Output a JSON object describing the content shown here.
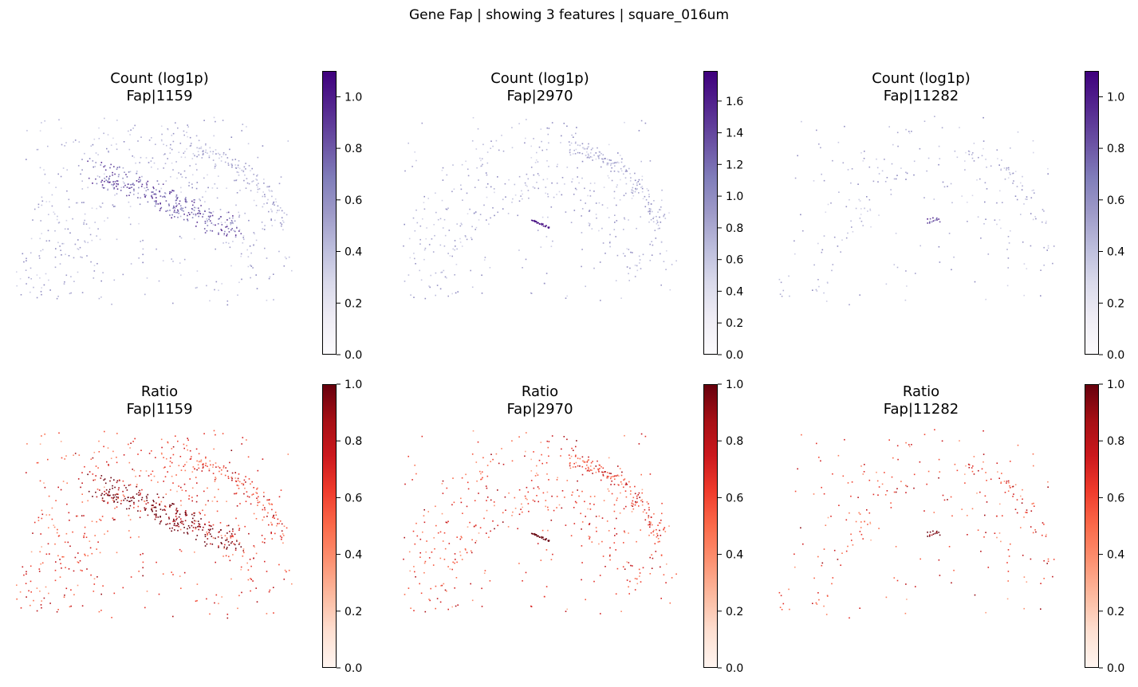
{
  "suptitle": "Gene Fap | showing 3 features | square_016um",
  "colors": {
    "purples": [
      "#fcfbfd",
      "#efedf5",
      "#dadaeb",
      "#bcbddc",
      "#9e9ac8",
      "#807dba",
      "#6a51a3",
      "#54278f",
      "#3f007d"
    ],
    "reds": [
      "#fff5f0",
      "#fee0d2",
      "#fcbba1",
      "#fc9272",
      "#fb6a4a",
      "#ef3b2c",
      "#cb181d",
      "#a50f15",
      "#67000d"
    ]
  },
  "chart_data": [
    {
      "type": "scatter",
      "title": [
        "Count (log1p)",
        "Fap|1159"
      ],
      "colormap": "purples",
      "colorbar": {
        "range": [
          0,
          1.1
        ],
        "ticks": [
          "0.0",
          "0.2",
          "0.4",
          "0.6",
          "0.8",
          "1.0"
        ]
      }
    },
    {
      "type": "scatter",
      "title": [
        "Count (log1p)",
        "Fap|2970"
      ],
      "colormap": "purples",
      "colorbar": {
        "range": [
          0,
          1.79
        ],
        "ticks": [
          "0.0",
          "0.2",
          "0.4",
          "0.6",
          "0.8",
          "1.0",
          "1.2",
          "1.4",
          "1.6"
        ]
      }
    },
    {
      "type": "scatter",
      "title": [
        "Count (log1p)",
        "Fap|11282"
      ],
      "colormap": "purples",
      "colorbar": {
        "range": [
          0,
          1.1
        ],
        "ticks": [
          "0.0",
          "0.2",
          "0.4",
          "0.6",
          "0.8",
          "1.0"
        ]
      }
    },
    {
      "type": "scatter",
      "title": [
        "Ratio",
        "Fap|1159"
      ],
      "colormap": "reds",
      "colorbar": {
        "range": [
          0,
          1.0
        ],
        "ticks": [
          "0.0",
          "0.2",
          "0.4",
          "0.6",
          "0.8",
          "1.0"
        ]
      }
    },
    {
      "type": "scatter",
      "title": [
        "Ratio",
        "Fap|2970"
      ],
      "colormap": "reds",
      "colorbar": {
        "range": [
          0,
          1.0
        ],
        "ticks": [
          "0.0",
          "0.2",
          "0.4",
          "0.6",
          "0.8",
          "1.0"
        ]
      }
    },
    {
      "type": "scatter",
      "title": [
        "Ratio",
        "Fap|11282"
      ],
      "colormap": "reds",
      "colorbar": {
        "range": [
          0,
          1.0
        ],
        "ticks": [
          "0.0",
          "0.2",
          "0.4",
          "0.6",
          "0.8",
          "1.0"
        ]
      }
    }
  ]
}
